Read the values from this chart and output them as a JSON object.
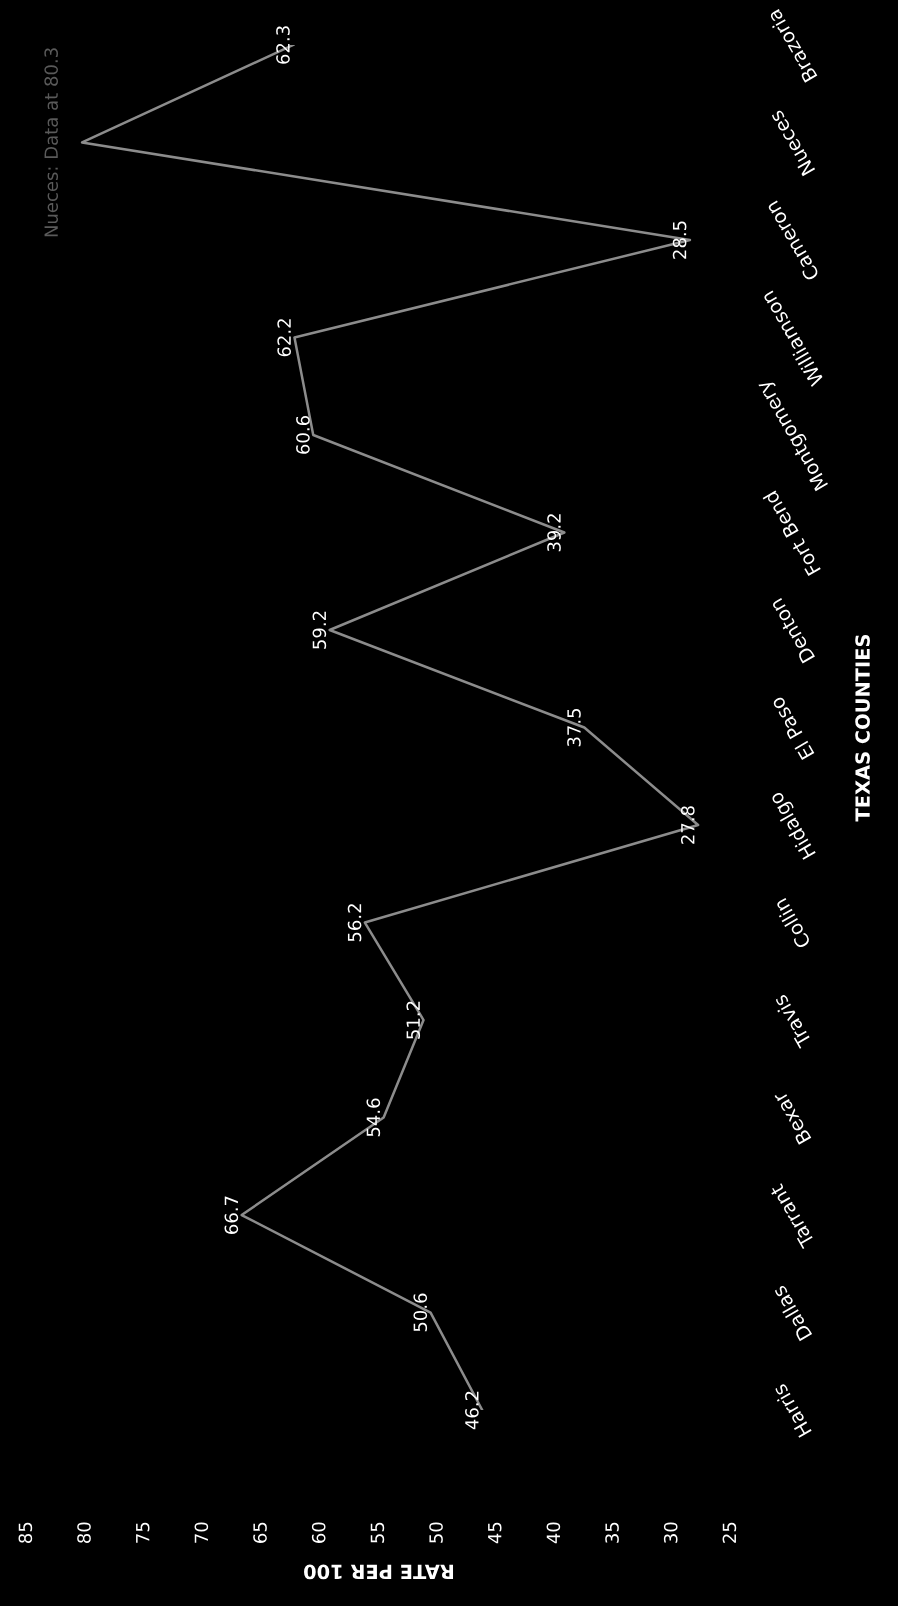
{
  "chart_data": {
    "type": "line",
    "orientation": "horizontal",
    "xlabel": "RATE PER 100",
    "ylabel": "TEXAS COUNTIES",
    "categories": [
      "Brazoria",
      "Nueces",
      "Cameron",
      "Williamson",
      "Montgomery",
      "Fort Bend",
      "Denton",
      "El Paso",
      "Hidalgo",
      "Collin",
      "Travis",
      "Bexar",
      "Tarrant",
      "Dallas",
      "Harris"
    ],
    "series": [
      {
        "color": "#8c8c8c",
        "values": [
          62.3,
          80.3,
          28.5,
          62.2,
          60.6,
          39.2,
          59.2,
          37.5,
          27.8,
          56.2,
          51.2,
          54.6,
          66.7,
          50.6,
          46.2
        ],
        "value_labels": [
          "62.3",
          null,
          "28.5",
          "62.2",
          "60.6",
          "39.2",
          "59.2",
          "37.5",
          "27.8",
          "56.2",
          "51.2",
          "54.6",
          "66.7",
          "50.6",
          "46.2"
        ]
      }
    ],
    "annotations": [
      {
        "text": "Nueces: Data at 80.3",
        "x": 80.3,
        "y": "Nueces"
      }
    ],
    "xlim": [
      85,
      25
    ],
    "xticks": [
      85,
      80,
      75,
      70,
      65,
      60,
      55,
      50,
      45,
      40,
      35,
      30,
      25
    ],
    "grid": false,
    "legend": false,
    "marker": "none",
    "line_style": "solid"
  }
}
